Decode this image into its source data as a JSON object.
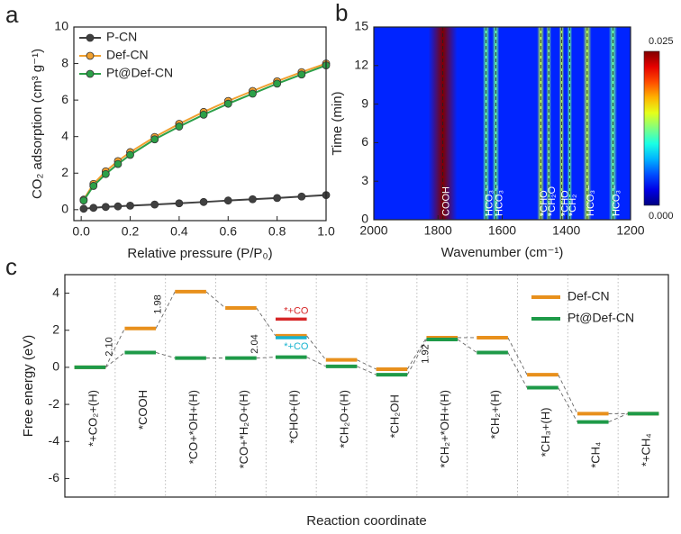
{
  "chart_data": [
    {
      "type": "line",
      "panel_label": "a",
      "x_label": "Relative pressure (P/P₀)",
      "y_label": "CO₂ adsorption (cm³ g⁻¹)",
      "x": [
        0.01,
        0.05,
        0.1,
        0.15,
        0.2,
        0.3,
        0.4,
        0.5,
        0.6,
        0.7,
        0.8,
        0.9,
        1.0
      ],
      "series": [
        {
          "name": "P-CN",
          "color": "#404040",
          "values": [
            0.05,
            0.1,
            0.15,
            0.18,
            0.22,
            0.28,
            0.35,
            0.42,
            0.5,
            0.57,
            0.64,
            0.72,
            0.8
          ]
        },
        {
          "name": "Def-CN",
          "color": "#f0a030",
          "values": [
            0.55,
            1.41,
            2.1,
            2.66,
            3.15,
            3.98,
            4.7,
            5.35,
            5.95,
            6.5,
            7.03,
            7.53,
            8.0
          ]
        },
        {
          "name": "Pt@Def-CN",
          "color": "#2ca048",
          "values": [
            0.5,
            1.3,
            1.95,
            2.5,
            3.0,
            3.85,
            4.55,
            5.2,
            5.8,
            6.35,
            6.9,
            7.4,
            7.9
          ]
        }
      ],
      "xlim": [
        -0.03,
        1.0
      ],
      "ylim": [
        -0.6,
        10
      ],
      "xticks": [
        {
          "value": 0,
          "label": "0.0"
        },
        {
          "value": 0.2,
          "label": "0.2"
        },
        {
          "value": 0.4,
          "label": "0.4"
        },
        {
          "value": 0.6,
          "label": "0.6"
        },
        {
          "value": 0.8,
          "label": "0.8"
        },
        {
          "value": 1.0,
          "label": "1.0"
        }
      ],
      "yticks": [
        0,
        2,
        4,
        6,
        8,
        10
      ],
      "legend": "upper left"
    },
    {
      "type": "heatmap",
      "panel_label": "b",
      "x_label": "Wavenumber (cm⁻¹)",
      "y_label": "Time (min)",
      "xlim": [
        2000,
        1200
      ],
      "ylim": [
        0,
        15
      ],
      "xticks": [
        2000,
        1800,
        1600,
        1400,
        1200
      ],
      "yticks": [
        0,
        3,
        6,
        9,
        12,
        15
      ],
      "clim": [
        0,
        0.025
      ],
      "cticks": [
        0.025,
        {
          "value": 0,
          "label": "0.000"
        }
      ],
      "background": 0.004,
      "bands": [
        {
          "label": "COOH",
          "x": 1785,
          "width": 90,
          "max": 0.025
        },
        {
          "label": "HCO₃⁻",
          "x": 1650,
          "width": 22,
          "max": 0.012
        },
        {
          "label": "HCO₃⁻",
          "x": 1620,
          "width": 22,
          "max": 0.012
        },
        {
          "label": "*CHO",
          "x": 1480,
          "width": 22,
          "max": 0.014
        },
        {
          "label": "*CH₂O",
          "x": 1455,
          "width": 16,
          "max": 0.013
        },
        {
          "label": "*CHO",
          "x": 1415,
          "width": 16,
          "max": 0.014
        },
        {
          "label": "*CH₂",
          "x": 1390,
          "width": 16,
          "max": 0.012
        },
        {
          "label": "HCO₃⁻",
          "x": 1335,
          "width": 26,
          "max": 0.014
        },
        {
          "label": "HCO₃⁻",
          "x": 1255,
          "width": 26,
          "max": 0.012
        }
      ]
    },
    {
      "type": "energy-steps",
      "panel_label": "c",
      "x_label": "Reaction coordinate",
      "y_label": "Free energy (eV)",
      "categories": [
        "*+CO₂+(H)",
        "*COOH",
        "*CO+*OH+(H)",
        "*CO+*H₂O+(H)",
        "*CHO+(H)",
        "*CH₂O+(H)",
        "*CH₂OH",
        "*CH₂+*OH+(H)",
        "*CH₂+(H)",
        "*CH₃+(H)",
        "*CH₄",
        "*+CH₄"
      ],
      "series": [
        {
          "name": "Def-CN",
          "color": "#e8901c",
          "values": [
            0,
            2.1,
            4.08,
            3.2,
            1.7,
            0.4,
            -0.1,
            1.6,
            1.6,
            -0.4,
            -2.5,
            -2.5
          ]
        },
        {
          "name": "Pt@Def-CN",
          "color": "#1e9a48",
          "values": [
            0,
            0.8,
            0.5,
            0.5,
            0.55,
            0.05,
            -0.4,
            1.5,
            0.8,
            -1.1,
            -2.95,
            -2.5
          ]
        }
      ],
      "extra_levels": [
        {
          "label": "*+CO",
          "value": 2.6,
          "color": "#d62728"
        },
        {
          "label": "*+CO",
          "value": 1.6,
          "color": "#17b3cf"
        }
      ],
      "annotations": [
        "2.10",
        "1.98",
        "2.04",
        "1.92"
      ],
      "ylim": [
        -7,
        5
      ],
      "yticks": [
        -6,
        -4,
        -2,
        0,
        2,
        4
      ],
      "legend": "upper right",
      "category_separators": true
    }
  ]
}
